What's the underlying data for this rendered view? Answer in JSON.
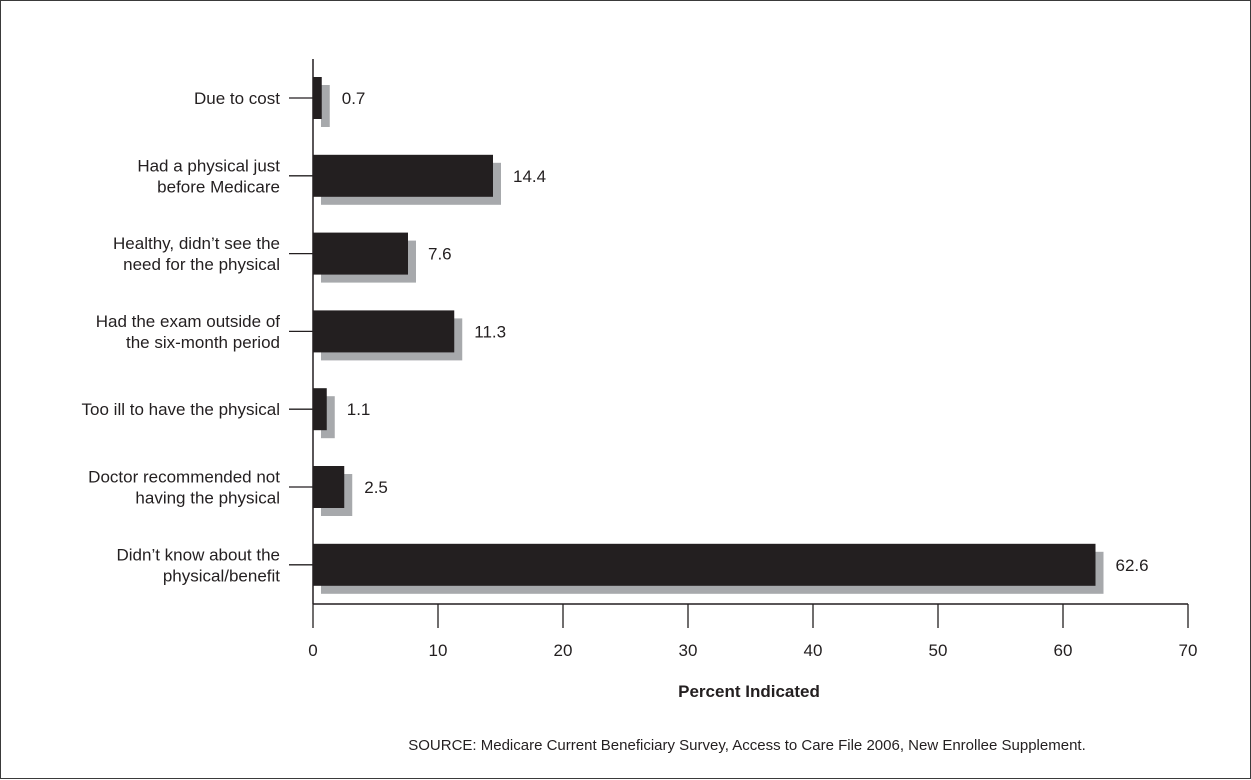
{
  "chart_data": {
    "type": "bar",
    "orientation": "horizontal",
    "categories": [
      [
        "Due to cost"
      ],
      [
        "Had a physical just",
        "before Medicare"
      ],
      [
        "Healthy, didn’t see the",
        "need for the physical"
      ],
      [
        "Had the exam outside of",
        "the six-month period"
      ],
      [
        "Too ill to have the physical"
      ],
      [
        "Doctor recommended not",
        "having the physical"
      ],
      [
        "Didn’t know about the",
        "physical/benefit"
      ]
    ],
    "values": [
      0.7,
      14.4,
      7.6,
      11.3,
      1.1,
      2.5,
      62.6
    ],
    "value_labels": [
      "0.7",
      "14.4",
      "7.6",
      "11.3",
      "1.1",
      "2.5",
      "62.6"
    ],
    "xlabel": "Percent Indicated",
    "xlim": [
      0,
      70
    ],
    "xticks": [
      0,
      10,
      20,
      30,
      40,
      50,
      60,
      70
    ],
    "grid": false,
    "bar_color": "#231f20",
    "shadow_color": "#a7a9ac"
  },
  "source_note": "SOURCE: Medicare Current Beneficiary Survey, Access to Care File 2006, New Enrollee Supplement."
}
